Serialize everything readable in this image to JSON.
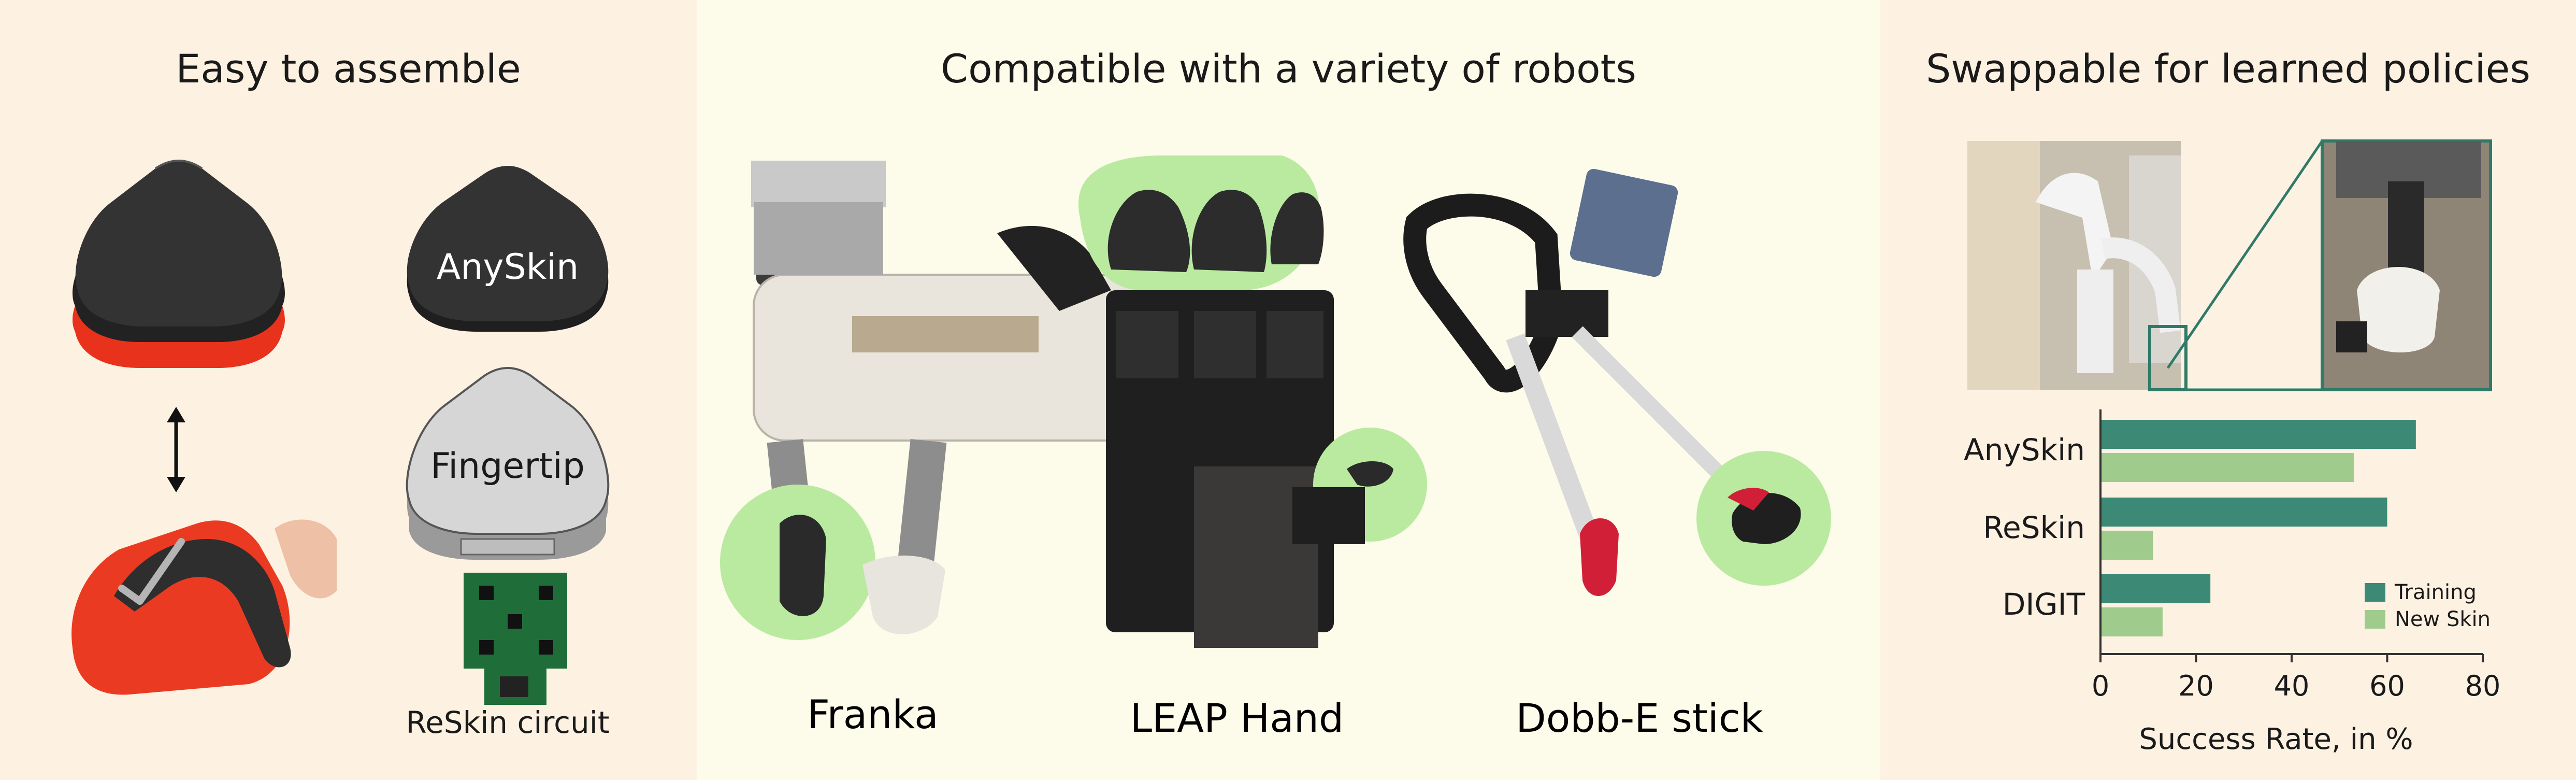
{
  "panels": {
    "assemble": {
      "title": "Easy to assemble",
      "skin_label": "AnySkin",
      "fingertip_label": "Fingertip",
      "circuit_label": "ReSkin circuit"
    },
    "robots": {
      "title": "Compatible with a variety of robots",
      "robot_names": [
        "Franka",
        "LEAP Hand",
        "Dobb-E stick"
      ]
    },
    "policies": {
      "title": "Swappable for learned policies"
    }
  },
  "colors": {
    "training": "#3c8a76",
    "new_skin": "#9fcb8c",
    "highlight": "#b9eaa0",
    "skin": "#2b2b2b",
    "base_red": "#e8321c"
  },
  "chart_data": {
    "type": "bar",
    "orientation": "horizontal",
    "categories": [
      "AnySkin",
      "ReSkin",
      "DIGIT"
    ],
    "series": [
      {
        "name": "Training",
        "values": [
          66,
          60,
          23
        ]
      },
      {
        "name": "New Skin",
        "values": [
          53,
          11,
          13
        ]
      }
    ],
    "xlabel": "Success Rate, in %",
    "xlim": [
      0,
      80
    ],
    "xticks": [
      0,
      20,
      40,
      60,
      80
    ],
    "legend": "bottom-right",
    "grid": false
  }
}
